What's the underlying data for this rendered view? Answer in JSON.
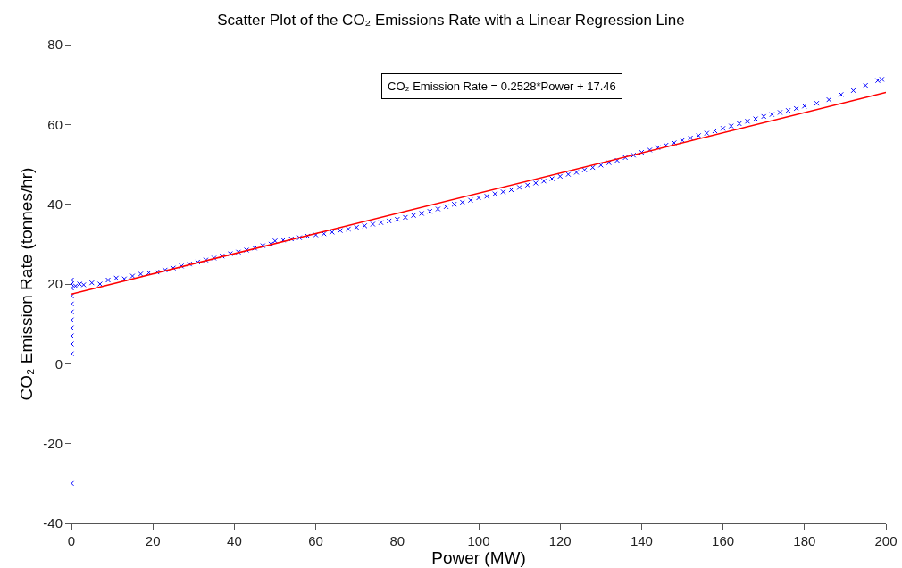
{
  "chart_data": {
    "type": "scatter",
    "title": "Scatter Plot of the CO₂ Emissions Rate with a Linear Regression Line",
    "xlabel": "Power (MW)",
    "ylabel": "CO₂ Emission Rate (tonnes/hr)",
    "annotations": [
      "CO₂ Emission Rate = 0.2528*Power + 17.46"
    ],
    "xlim": [
      0,
      200
    ],
    "xticks": [
      0,
      20,
      40,
      60,
      80,
      100,
      120,
      140,
      160,
      180,
      200
    ],
    "ylim": [
      -40,
      80
    ],
    "yticks": [
      -40,
      -20,
      0,
      20,
      40,
      60,
      80
    ],
    "grid": false,
    "series": [
      {
        "marker": "cross",
        "color": "#0000ff",
        "x": [
          0,
          0,
          0,
          0,
          0,
          0,
          0,
          0,
          0,
          0,
          0,
          0,
          1,
          2,
          3,
          5,
          7,
          9,
          11,
          13,
          15,
          17,
          19,
          21,
          23,
          25,
          27,
          29,
          31,
          33,
          35,
          37,
          39,
          41,
          43,
          45,
          47,
          49,
          50,
          52,
          54,
          56,
          58,
          60,
          62,
          64,
          66,
          68,
          70,
          72,
          74,
          76,
          78,
          80,
          82,
          84,
          86,
          88,
          90,
          92,
          94,
          96,
          98,
          100,
          102,
          104,
          106,
          108,
          110,
          112,
          114,
          116,
          118,
          120,
          122,
          124,
          126,
          128,
          130,
          132,
          134,
          136,
          138,
          140,
          142,
          144,
          146,
          148,
          150,
          152,
          154,
          156,
          158,
          160,
          162,
          164,
          166,
          168,
          170,
          172,
          174,
          176,
          178,
          180,
          183,
          186,
          189,
          192,
          195,
          198,
          199
        ],
        "values": [
          21,
          20,
          19,
          17,
          15,
          13,
          11,
          9,
          7,
          5,
          2.5,
          -30,
          19.5,
          20,
          19.8,
          20.3,
          20,
          21,
          21.5,
          21.3,
          22,
          22.5,
          22.8,
          23,
          23.5,
          24,
          24.5,
          25,
          25.5,
          26,
          26.5,
          27,
          27.6,
          28,
          28.5,
          29,
          29.6,
          30,
          30.8,
          31,
          31.3,
          31.6,
          32,
          32.3,
          32.6,
          33,
          33.4,
          33.8,
          34.2,
          34.6,
          35,
          35.4,
          35.8,
          36.2,
          36.7,
          37.2,
          37.7,
          38.2,
          38.8,
          39.4,
          40,
          40.5,
          41,
          41.6,
          42,
          42.6,
          43.1,
          43.6,
          44.2,
          44.8,
          45.3,
          45.8,
          46.4,
          47,
          47.5,
          48,
          48.6,
          49.2,
          49.8,
          50.4,
          51,
          51.7,
          52.3,
          53,
          53.6,
          54.2,
          54.8,
          55.4,
          56,
          56.6,
          57.2,
          57.8,
          58.4,
          59,
          59.6,
          60.2,
          60.8,
          61.4,
          62,
          62.5,
          63,
          63.5,
          64,
          64.6,
          65.3,
          66.2,
          67.5,
          68.5,
          69.8,
          71,
          71.3
        ]
      },
      {
        "type": "line",
        "marker": "none",
        "color": "#ff0000",
        "x": [
          0,
          200
        ],
        "values": [
          17.5,
          68
        ]
      }
    ]
  }
}
